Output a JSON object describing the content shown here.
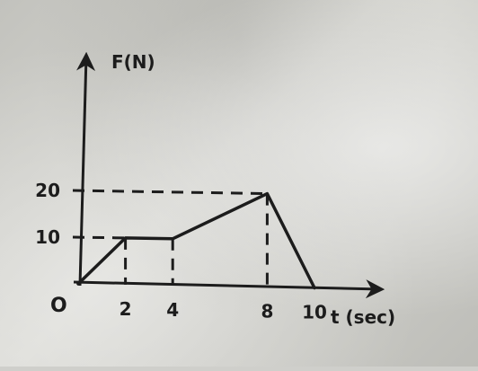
{
  "chart_data": {
    "type": "line",
    "ylabel": "F(N)",
    "xlabel": "t (sec)",
    "origin_label": "O",
    "x_ticks": [
      2,
      4,
      8,
      10
    ],
    "x_tick_labels": [
      "2",
      "4",
      "8",
      "10"
    ],
    "y_ticks": [
      10,
      20
    ],
    "y_tick_labels": [
      "10",
      "20"
    ],
    "xlim": [
      0,
      12
    ],
    "ylim": [
      0,
      26
    ],
    "grid": false,
    "series": [
      {
        "x": [
          0,
          2,
          4,
          8,
          10
        ],
        "y": [
          0,
          10,
          10,
          20,
          0
        ]
      }
    ],
    "colors": {
      "ink": "#1c1c1c"
    }
  }
}
